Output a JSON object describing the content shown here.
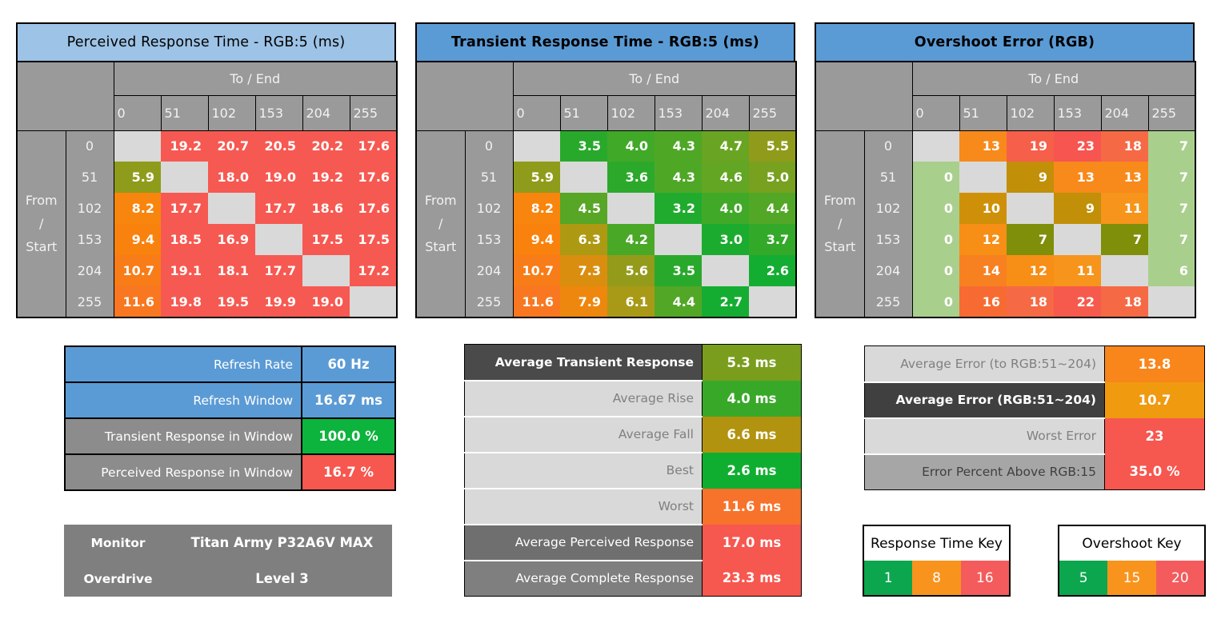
{
  "heatmaps": [
    {
      "title": "Perceived Response Time - RGB:5 (ms)",
      "title_bg": "#9DC3E6",
      "title_bold": false,
      "col_banner": "To / End",
      "row_banner": [
        "From",
        "/",
        "Start"
      ],
      "cols": [
        "0",
        "51",
        "102",
        "153",
        "204",
        "255"
      ],
      "row_labels": [
        "0",
        "51",
        "102",
        "153",
        "204",
        "255"
      ],
      "cells": [
        [
          null,
          [
            "19.2",
            "#F65951"
          ],
          [
            "20.7",
            "#F65951"
          ],
          [
            "20.5",
            "#F65951"
          ],
          [
            "20.2",
            "#F65951"
          ],
          [
            "17.6",
            "#F65951"
          ]
        ],
        [
          [
            "5.9",
            "#8F9C1B"
          ],
          null,
          [
            "18.0",
            "#F65951"
          ],
          [
            "19.0",
            "#F65951"
          ],
          [
            "19.2",
            "#F65951"
          ],
          [
            "17.6",
            "#F65951"
          ]
        ],
        [
          [
            "8.2",
            "#F8850E"
          ],
          [
            "17.7",
            "#F65951"
          ],
          null,
          [
            "17.7",
            "#F65951"
          ],
          [
            "18.6",
            "#F65951"
          ],
          [
            "17.6",
            "#F65951"
          ]
        ],
        [
          [
            "9.4",
            "#F8820D"
          ],
          [
            "18.5",
            "#F65951"
          ],
          [
            "16.9",
            "#F65951"
          ],
          null,
          [
            "17.5",
            "#F65951"
          ],
          [
            "17.5",
            "#F65951"
          ]
        ],
        [
          [
            "10.7",
            "#F87C18"
          ],
          [
            "19.1",
            "#F65951"
          ],
          [
            "18.1",
            "#F65951"
          ],
          [
            "17.7",
            "#F65951"
          ],
          null,
          [
            "17.2",
            "#F65951"
          ]
        ],
        [
          [
            "11.6",
            "#F87720"
          ],
          [
            "19.8",
            "#F65951"
          ],
          [
            "19.5",
            "#F65951"
          ],
          [
            "19.9",
            "#F65951"
          ],
          [
            "19.0",
            "#F65951"
          ],
          null
        ]
      ]
    },
    {
      "title": "Transient Response Time - RGB:5 (ms)",
      "title_bg": "#5B9BD5",
      "title_bold": true,
      "col_banner": "To / End",
      "row_banner": [
        "From",
        "/",
        "Start"
      ],
      "cols": [
        "0",
        "51",
        "102",
        "153",
        "204",
        "255"
      ],
      "row_labels": [
        "0",
        "51",
        "102",
        "153",
        "204",
        "255"
      ],
      "cells": [
        [
          null,
          [
            "3.5",
            "#29A92C"
          ],
          [
            "4.0",
            "#41A928"
          ],
          [
            "4.3",
            "#4FA726"
          ],
          [
            "4.7",
            "#69A522"
          ],
          [
            "5.5",
            "#909B1B"
          ]
        ],
        [
          [
            "5.9",
            "#8F9C1B"
          ],
          null,
          [
            "3.6",
            "#2CA92B"
          ],
          [
            "4.3",
            "#4FA726"
          ],
          [
            "4.6",
            "#62A623"
          ],
          [
            "5.0",
            "#78A120"
          ]
        ],
        [
          [
            "8.2",
            "#F8850E"
          ],
          [
            "4.5",
            "#57A625"
          ],
          null,
          [
            "3.2",
            "#20AB2E"
          ],
          [
            "4.0",
            "#41A928"
          ],
          [
            "4.4",
            "#52A726"
          ]
        ],
        [
          [
            "9.4",
            "#F8820D"
          ],
          [
            "6.3",
            "#AE9913"
          ],
          [
            "4.2",
            "#4AA827"
          ],
          null,
          [
            "3.0",
            "#1BAC2F"
          ],
          [
            "3.7",
            "#33A92A"
          ]
        ],
        [
          [
            "10.7",
            "#F87C18"
          ],
          [
            "7.3",
            "#DA8E10"
          ],
          [
            "5.6",
            "#949B1A"
          ],
          [
            "3.5",
            "#29A92C"
          ],
          null,
          [
            "2.6",
            "#13AD32"
          ]
        ],
        [
          [
            "11.6",
            "#F87720"
          ],
          [
            "7.9",
            "#EE870D"
          ],
          [
            "6.1",
            "#A89A16"
          ],
          [
            "4.4",
            "#52A726"
          ],
          [
            "2.7",
            "#15AD31"
          ],
          null
        ]
      ]
    },
    {
      "title": "Overshoot Error (RGB)",
      "title_bg": "#5B9BD5",
      "title_bold": true,
      "col_banner": "To / End",
      "row_banner": [
        "From",
        "/",
        "Start"
      ],
      "cols": [
        "0",
        "51",
        "102",
        "153",
        "204",
        "255"
      ],
      "row_labels": [
        "0",
        "51",
        "102",
        "153",
        "204",
        "255"
      ],
      "cells": [
        [
          null,
          [
            "13",
            "#F8891B"
          ],
          [
            "19",
            "#F65F49"
          ],
          [
            "23",
            "#F65550"
          ],
          [
            "18",
            "#F66945"
          ],
          [
            "7",
            "#A9CF8D"
          ]
        ],
        [
          [
            "0",
            "#A9CF8D"
          ],
          null,
          [
            "9",
            "#C18F08"
          ],
          [
            "13",
            "#F8891B"
          ],
          [
            "13",
            "#F8891B"
          ],
          [
            "7",
            "#A9CF8D"
          ]
        ],
        [
          [
            "0",
            "#A9CF8D"
          ],
          [
            "10",
            "#CF9009"
          ],
          null,
          [
            "9",
            "#C18F08"
          ],
          [
            "11",
            "#F6941C"
          ],
          [
            "7",
            "#A9CF8D"
          ]
        ],
        [
          [
            "0",
            "#A9CF8D"
          ],
          [
            "12",
            "#F78E16"
          ],
          [
            "7",
            "#7F8F0A"
          ],
          null,
          [
            "7",
            "#7F8F0A"
          ],
          [
            "7",
            "#A9CF8D"
          ]
        ],
        [
          [
            "0",
            "#A9CF8D"
          ],
          [
            "14",
            "#F78121"
          ],
          [
            "12",
            "#F78E16"
          ],
          [
            "11",
            "#F6941C"
          ],
          null,
          [
            "6",
            "#A9CF8D"
          ]
        ],
        [
          [
            "0",
            "#A9CF8D"
          ],
          [
            "16",
            "#F76B33"
          ],
          [
            "18",
            "#F66945"
          ],
          [
            "22",
            "#F65A4C"
          ],
          [
            "18",
            "#F66945"
          ],
          null
        ]
      ]
    }
  ],
  "summary_refresh": {
    "rows": [
      {
        "label": "Refresh Rate",
        "label_bg": "#5B9BD5",
        "label_fg": "#FFFFFF",
        "value": "60 Hz",
        "value_bg": "#5B9BD5"
      },
      {
        "label": "Refresh Window",
        "label_bg": "#5B9BD5",
        "label_fg": "#FFFFFF",
        "value": "16.67 ms",
        "value_bg": "#5B9BD5"
      },
      {
        "label": "Transient Response in Window",
        "label_bg": "#8C8C8C",
        "label_fg": "#FFFFFF",
        "value": "100.0 %",
        "value_bg": "#0CB33C"
      },
      {
        "label": "Perceived Response in Window",
        "label_bg": "#8C8C8C",
        "label_fg": "#FFFFFF",
        "value": "16.7 %",
        "value_bg": "#F6574F"
      }
    ]
  },
  "summary_response": {
    "rows": [
      {
        "label": "Average Transient Response",
        "label_bold": true,
        "label_bg": "#4A4A4A",
        "label_fg": "#FFFFFF",
        "value": "5.3 ms",
        "value_bg": "#7A9D1D"
      },
      {
        "label": "Average Rise",
        "label_bg": "#D9D9D9",
        "label_fg": "#7F8080",
        "value": "4.0 ms",
        "value_bg": "#38A829"
      },
      {
        "label": "Average Fall",
        "label_bg": "#D9D9D9",
        "label_fg": "#7F8080",
        "value": "6.6 ms",
        "value_bg": "#B2930F"
      },
      {
        "label": "Best",
        "label_bg": "#D9D9D9",
        "label_fg": "#7F8080",
        "value": "2.6 ms",
        "value_bg": "#10AE30"
      },
      {
        "label": "Worst",
        "label_bg": "#D9D9D9",
        "label_fg": "#7F8080",
        "value": "11.6 ms",
        "value_bg": "#F7722B"
      },
      {
        "label": "Average Perceived Response",
        "label_bg": "#6F6F6F",
        "label_fg": "#FFFFFF",
        "value": "17.0 ms",
        "value_bg": "#F6574F"
      },
      {
        "label": "Average Complete Response",
        "label_bg": "#7F7F7F",
        "label_fg": "#FFFFFF",
        "value": "23.3 ms",
        "value_bg": "#F6574F"
      }
    ]
  },
  "summary_overshoot": {
    "rows": [
      {
        "label": "Average Error (to RGB:51~204)",
        "label_bg": "#D9D9D9",
        "label_fg": "#7F8080",
        "value": "13.8",
        "value_bg": "#F8861B"
      },
      {
        "label": "Average Error (RGB:51~204)",
        "label_bold": true,
        "label_bg": "#404040",
        "label_fg": "#FFFFFF",
        "value": "10.7",
        "value_bg": "#F09A10"
      },
      {
        "label": "Worst Error",
        "label_bg": "#D9D9D9",
        "label_fg": "#7F8080",
        "value": "23",
        "value_bg": "#F6574F"
      },
      {
        "label": "Error Percent Above RGB:15",
        "label_bg": "#A6A6A6",
        "label_fg": "#3F3F3F",
        "value": "35.0 %",
        "value_bg": "#F6574F"
      }
    ]
  },
  "monitor_info": {
    "rows": [
      {
        "label": "Monitor",
        "label_bold": true,
        "label_bg": "#7F7F7F",
        "label_fg": "#FFFFFF",
        "value": "Titan Army P32A6V MAX",
        "value_bg": "#7F7F7F"
      },
      {
        "label": "Overdrive",
        "label_bold": true,
        "label_bg": "#7F7F7F",
        "label_fg": "#FFFFFF",
        "value": "Level 3",
        "value_bg": "#7F7F7F"
      }
    ]
  },
  "keys": [
    {
      "title": "Response Time Key",
      "stops": [
        [
          "1",
          "#0CA64E"
        ],
        [
          "8",
          "#F8941D"
        ],
        [
          "16",
          "#F45B5C"
        ]
      ]
    },
    {
      "title": "Overshoot Key",
      "stops": [
        [
          "5",
          "#0CA64E"
        ],
        [
          "15",
          "#F8941D"
        ],
        [
          "20",
          "#F45B5C"
        ]
      ]
    }
  ],
  "palette": {
    "header_grey": "#9A9A9A",
    "diagonal_grey": "#D9D9D9",
    "title_blue_light": "#9DC3E6",
    "title_blue_strong": "#5B9BD5",
    "response_red": "#F65951",
    "overshoot_pale_green": "#A9CF8D"
  }
}
